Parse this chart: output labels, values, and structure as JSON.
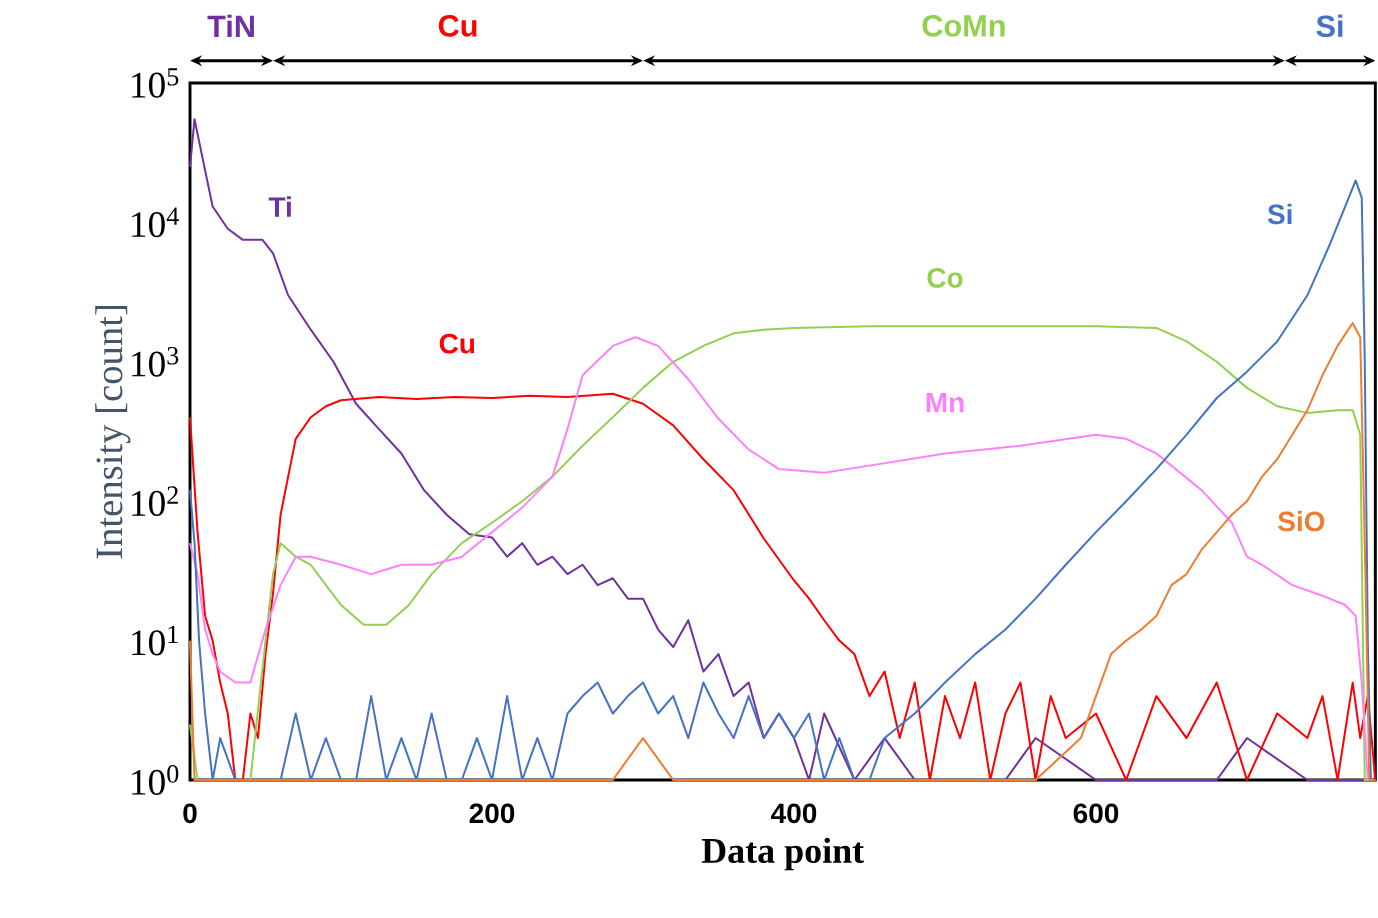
{
  "chart_data": {
    "type": "line",
    "xlabel": "Data point",
    "ylabel": "Intensity [count]",
    "log": "y",
    "xlim": [
      0,
      785
    ],
    "xticks": [
      0,
      200,
      400,
      600
    ],
    "ylim": [
      1,
      100000
    ],
    "yticks": [
      {
        "value": 1,
        "label": "10$^{0}$"
      },
      {
        "value": 10,
        "label": "10$^{1}$"
      },
      {
        "value": 100,
        "label": "10$^{2}$"
      },
      {
        "value": 1000,
        "label": "10$^{3}$"
      },
      {
        "value": 10000,
        "label": "10$^{4}$"
      },
      {
        "value": 100000,
        "label": "10$^{5}$"
      }
    ],
    "annotations": [
      "TiN",
      "Cu",
      "CoMn",
      "Si"
    ],
    "series": [
      {
        "name": "Ti",
        "color": "#7030a0",
        "x": [
          0,
          3,
          8,
          15,
          25,
          35,
          48,
          55,
          65,
          80,
          95,
          110,
          125,
          140,
          155,
          170,
          185,
          200,
          210,
          220,
          230,
          240,
          250,
          260,
          270,
          280,
          290,
          300,
          310,
          320,
          330,
          340,
          350,
          360,
          370,
          380,
          390,
          400,
          410,
          420,
          440,
          460,
          480,
          500,
          540,
          560,
          600,
          640,
          680,
          700,
          740,
          785
        ],
        "values": [
          25000,
          55000,
          30000,
          13000,
          9000,
          7500,
          7500,
          6000,
          3000,
          1700,
          1000,
          500,
          330,
          220,
          120,
          80,
          58,
          55,
          40,
          50,
          35,
          40,
          30,
          35,
          25,
          28,
          20,
          20,
          12,
          9,
          14,
          6,
          8,
          4,
          5,
          2,
          3,
          2,
          1,
          3,
          1,
          2,
          1,
          1,
          1,
          2,
          1,
          1,
          1,
          2,
          1,
          1
        ]
      },
      {
        "name": "Cu",
        "color": "#ff0000",
        "x": [
          0,
          5,
          10,
          15,
          20,
          25,
          30,
          35,
          40,
          45,
          50,
          55,
          60,
          65,
          70,
          80,
          90,
          100,
          125,
          150,
          175,
          200,
          225,
          250,
          280,
          300,
          320,
          340,
          360,
          380,
          400,
          410,
          420,
          430,
          440,
          450,
          460,
          470,
          480,
          490,
          500,
          510,
          520,
          530,
          540,
          550,
          560,
          570,
          580,
          600,
          620,
          640,
          660,
          680,
          700,
          720,
          740,
          750,
          760,
          770,
          775,
          780,
          785
        ],
        "values": [
          400,
          60,
          15,
          10,
          5,
          3,
          1,
          1,
          3,
          2,
          8,
          22,
          80,
          150,
          280,
          400,
          480,
          530,
          560,
          540,
          560,
          550,
          570,
          560,
          590,
          500,
          350,
          200,
          120,
          54,
          27,
          20,
          14,
          10,
          8,
          4,
          6,
          2,
          5,
          1,
          4,
          2,
          5,
          1,
          3,
          5,
          1,
          4,
          2,
          3,
          1,
          4,
          2,
          5,
          1,
          3,
          2,
          4,
          1,
          5,
          2,
          4,
          1
        ]
      },
      {
        "name": "Co",
        "color": "#92d050",
        "x": [
          0,
          5,
          10,
          20,
          30,
          40,
          50,
          55,
          60,
          70,
          80,
          90,
          100,
          115,
          130,
          145,
          160,
          180,
          200,
          220,
          240,
          260,
          280,
          300,
          320,
          340,
          360,
          380,
          400,
          450,
          500,
          550,
          600,
          640,
          660,
          680,
          700,
          720,
          740,
          760,
          770,
          775,
          778,
          785
        ],
        "values": [
          2.5,
          1,
          1,
          1,
          1,
          1,
          10,
          30,
          50,
          40,
          35,
          25,
          18,
          13,
          13,
          18,
          30,
          50,
          70,
          100,
          150,
          250,
          400,
          650,
          1000,
          1300,
          1600,
          1700,
          1750,
          1800,
          1800,
          1800,
          1800,
          1750,
          1400,
          1000,
          650,
          480,
          430,
          450,
          450,
          300,
          1,
          1
        ]
      },
      {
        "name": "Mn",
        "color": "#ff80ff",
        "x": [
          0,
          5,
          10,
          15,
          20,
          30,
          40,
          50,
          60,
          70,
          80,
          100,
          120,
          140,
          160,
          180,
          200,
          220,
          240,
          250,
          260,
          280,
          295,
          310,
          330,
          350,
          370,
          390,
          420,
          450,
          500,
          550,
          600,
          620,
          640,
          650,
          670,
          690,
          700,
          710,
          730,
          750,
          765,
          772,
          776,
          780
        ],
        "values": [
          50,
          30,
          12,
          8,
          6,
          5,
          5,
          12,
          25,
          40,
          40,
          35,
          30,
          35,
          35,
          40,
          60,
          90,
          150,
          330,
          800,
          1300,
          1500,
          1300,
          750,
          390,
          235,
          170,
          160,
          180,
          220,
          250,
          300,
          280,
          220,
          180,
          120,
          70,
          40,
          35,
          25,
          21,
          18,
          15,
          5,
          1
        ]
      },
      {
        "name": "Si",
        "color": "#4472c4",
        "x": [
          0,
          3,
          6,
          10,
          15,
          20,
          30,
          40,
          50,
          60,
          70,
          80,
          90,
          100,
          110,
          120,
          130,
          140,
          150,
          160,
          170,
          180,
          190,
          200,
          210,
          220,
          230,
          240,
          250,
          260,
          270,
          280,
          290,
          300,
          310,
          320,
          330,
          340,
          350,
          360,
          370,
          380,
          390,
          400,
          410,
          420,
          430,
          440,
          450,
          460,
          480,
          500,
          520,
          540,
          560,
          580,
          600,
          620,
          640,
          660,
          680,
          700,
          720,
          740,
          755,
          765,
          772,
          776,
          778,
          780,
          782,
          785
        ],
        "values": [
          120,
          50,
          10,
          3,
          1,
          2,
          1,
          1,
          1,
          1,
          3,
          1,
          2,
          1,
          1,
          4,
          1,
          2,
          1,
          3,
          1,
          1,
          2,
          1,
          4,
          1,
          2,
          1,
          3,
          4,
          5,
          3,
          4,
          5,
          3,
          4,
          2,
          5,
          3,
          2,
          4,
          2,
          3,
          2,
          3,
          1,
          2,
          1,
          1,
          2,
          3,
          5,
          8,
          12,
          20,
          35,
          60,
          100,
          170,
          300,
          550,
          850,
          1400,
          3000,
          7000,
          13000,
          20000,
          15000,
          1000,
          10,
          1,
          1
        ]
      },
      {
        "name": "SiO",
        "color": "#ed7d31",
        "x": [
          0,
          3,
          6,
          100,
          280,
          300,
          320,
          400,
          500,
          560,
          590,
          600,
          610,
          620,
          630,
          640,
          650,
          660,
          670,
          680,
          690,
          700,
          710,
          720,
          730,
          740,
          750,
          760,
          770,
          775,
          778,
          781,
          785
        ],
        "values": [
          10,
          1,
          1,
          1,
          1,
          2,
          1,
          1,
          1,
          1,
          2,
          4,
          8,
          10,
          12,
          15,
          25,
          30,
          45,
          60,
          80,
          100,
          150,
          200,
          300,
          450,
          800,
          1300,
          1900,
          1500,
          50,
          1,
          1
        ]
      }
    ]
  }
}
